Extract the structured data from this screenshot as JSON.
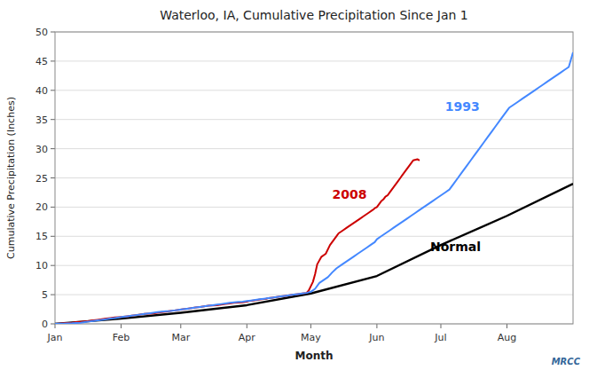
{
  "chart_data": {
    "type": "line",
    "title": "Waterloo, IA, Cumulative Precipitation Since Jan 1",
    "x_label": "Month",
    "y_label": "Cumulative Precipitation (Inches)",
    "xlim": [
      0,
      243
    ],
    "ylim": [
      0,
      50
    ],
    "xticks": [
      {
        "value": 0,
        "label": "Jan"
      },
      {
        "value": 31,
        "label": "Feb"
      },
      {
        "value": 59,
        "label": "Mar"
      },
      {
        "value": 90,
        "label": "Apr"
      },
      {
        "value": 120,
        "label": "May"
      },
      {
        "value": 151,
        "label": "Jun"
      },
      {
        "value": 181,
        "label": "Jul"
      },
      {
        "value": 212,
        "label": "Aug"
      }
    ],
    "yticks": [
      0,
      5,
      10,
      15,
      20,
      25,
      30,
      35,
      40,
      45,
      50
    ],
    "grid": true,
    "series": [
      {
        "color": "#000000",
        "x": [
          0,
          31,
          59,
          90,
          120,
          151,
          181,
          212,
          243
        ],
        "values": [
          0.0,
          0.9,
          1.9,
          3.2,
          5.2,
          8.2,
          13.5,
          18.5,
          24.0
        ]
      },
      {
        "color": "#cc0000",
        "x": [
          0,
          2,
          4,
          6,
          8,
          10,
          12,
          14,
          16,
          18,
          20,
          22,
          24,
          26,
          28,
          30,
          32,
          34,
          36,
          38,
          40,
          42,
          44,
          46,
          48,
          50,
          52,
          54,
          56,
          58,
          60,
          62,
          64,
          66,
          68,
          70,
          72,
          74,
          76,
          78,
          80,
          82,
          84,
          86,
          88,
          90,
          91,
          93,
          95,
          97,
          99,
          100,
          102,
          104,
          106,
          108,
          110,
          112,
          114,
          116,
          118,
          119,
          121,
          122,
          123,
          125,
          127,
          129,
          131,
          132,
          133,
          135,
          137,
          139,
          141,
          143,
          145,
          147,
          149,
          150,
          151,
          152,
          153,
          154,
          155,
          156,
          157,
          158,
          159,
          160,
          161,
          162,
          163,
          164,
          165,
          166,
          167,
          168,
          170,
          171
        ],
        "values": [
          0.0,
          0.05,
          0.1,
          0.15,
          0.2,
          0.3,
          0.35,
          0.4,
          0.5,
          0.6,
          0.7,
          0.8,
          0.9,
          1.0,
          1.1,
          1.15,
          1.2,
          1.3,
          1.4,
          1.5,
          1.6,
          1.7,
          1.75,
          1.8,
          1.9,
          2.0,
          2.1,
          2.2,
          2.3,
          2.4,
          2.5,
          2.6,
          2.7,
          2.8,
          2.9,
          3.0,
          3.1,
          3.15,
          3.2,
          3.3,
          3.4,
          3.5,
          3.6,
          3.65,
          3.7,
          3.8,
          3.9,
          4.0,
          4.1,
          4.2,
          4.3,
          4.4,
          4.5,
          4.6,
          4.7,
          4.8,
          4.9,
          5.0,
          5.1,
          5.2,
          5.3,
          5.7,
          7.2,
          8.5,
          10.2,
          11.5,
          12.0,
          13.5,
          14.5,
          15.0,
          15.5,
          16.0,
          16.5,
          17.0,
          17.5,
          18.0,
          18.5,
          19.0,
          19.5,
          19.8,
          20.0,
          20.5,
          21.0,
          21.3,
          21.8,
          22.0,
          22.5,
          23.0,
          23.5,
          24.0,
          24.5,
          25.0,
          25.5,
          26.0,
          26.5,
          27.0,
          27.5,
          28.0,
          28.2,
          28.0
        ]
      },
      {
        "color": "#4488ff",
        "x": [
          0,
          2,
          4,
          6,
          8,
          10,
          12,
          14,
          16,
          18,
          20,
          22,
          24,
          26,
          28,
          30,
          32,
          34,
          36,
          38,
          40,
          42,
          44,
          46,
          48,
          50,
          52,
          54,
          56,
          58,
          60,
          62,
          64,
          66,
          68,
          70,
          72,
          74,
          76,
          78,
          80,
          82,
          84,
          86,
          88,
          90,
          92,
          94,
          96,
          98,
          100,
          102,
          104,
          106,
          108,
          110,
          112,
          114,
          116,
          118,
          120,
          122,
          124,
          126,
          128,
          130,
          132,
          134,
          136,
          138,
          140,
          142,
          144,
          146,
          148,
          150,
          151,
          153,
          155,
          157,
          159,
          161,
          163,
          165,
          167,
          169,
          171,
          173,
          175,
          177,
          179,
          181,
          183,
          185,
          187,
          189,
          191,
          193,
          195,
          197,
          199,
          201,
          203,
          205,
          207,
          209,
          211,
          213,
          215,
          217,
          219,
          221,
          223,
          225,
          227,
          229,
          231,
          233,
          235,
          237,
          239,
          241,
          243
        ],
        "values": [
          0.0,
          0.03,
          0.05,
          0.08,
          0.1,
          0.15,
          0.2,
          0.3,
          0.4,
          0.5,
          0.6,
          0.7,
          0.8,
          0.9,
          1.0,
          1.1,
          1.2,
          1.3,
          1.4,
          1.5,
          1.6,
          1.7,
          1.8,
          1.9,
          2.0,
          2.1,
          2.15,
          2.2,
          2.3,
          2.4,
          2.5,
          2.6,
          2.7,
          2.8,
          2.9,
          3.0,
          3.1,
          3.2,
          3.3,
          3.4,
          3.5,
          3.6,
          3.7,
          3.75,
          3.8,
          3.9,
          4.0,
          4.1,
          4.2,
          4.3,
          4.4,
          4.5,
          4.6,
          4.7,
          4.8,
          4.9,
          5.0,
          5.1,
          5.2,
          5.3,
          5.5,
          6.0,
          7.0,
          7.5,
          8.0,
          8.8,
          9.5,
          10.0,
          10.5,
          11.0,
          11.5,
          12.0,
          12.5,
          13.0,
          13.5,
          14.0,
          14.5,
          15.0,
          15.5,
          16.0,
          16.5,
          17.0,
          17.5,
          18.0,
          18.5,
          19.0,
          19.5,
          20.0,
          20.5,
          21.0,
          21.5,
          22.0,
          22.5,
          23.0,
          24.0,
          25.0,
          26.0,
          27.0,
          28.0,
          29.0,
          30.0,
          31.0,
          32.0,
          33.0,
          34.0,
          35.0,
          36.0,
          37.0,
          37.5,
          38.0,
          38.5,
          39.0,
          39.5,
          40.0,
          40.5,
          41.0,
          41.5,
          42.0,
          42.5,
          43.0,
          43.5,
          44.0,
          46.5
        ]
      }
    ],
    "annotations": [
      {
        "text": "1993",
        "x": 183,
        "y": 36.5,
        "color": "#4488ff"
      },
      {
        "text": "2008",
        "x": 130,
        "y": 21.5,
        "color": "#cc0000"
      },
      {
        "text": "Normal",
        "x": 176,
        "y": 12.5,
        "color": "#000000"
      },
      {
        "text": "MRCC",
        "color": "#336699"
      }
    ]
  }
}
